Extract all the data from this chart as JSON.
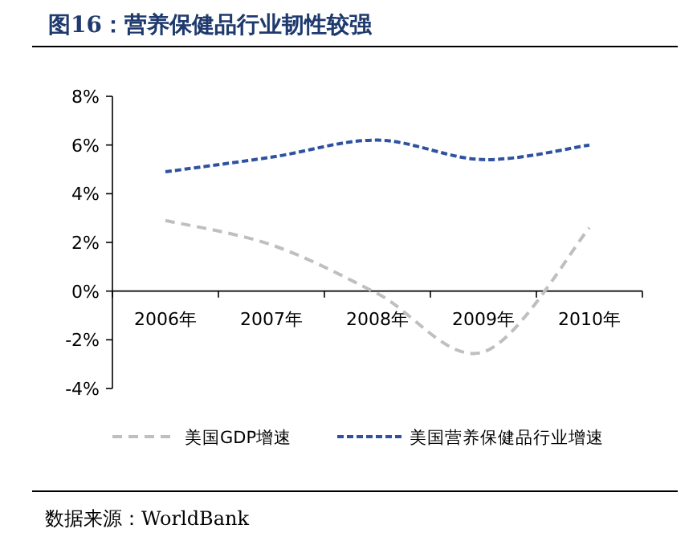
{
  "chart_data": {
    "type": "line",
    "title": "图16：营养保健品行业韧性较强",
    "categories": [
      "2006年",
      "2007年",
      "2008年",
      "2009年",
      "2010年"
    ],
    "series": [
      {
        "name": "美国GDP增速",
        "color": "#bfbfbf",
        "line_style": "dashed",
        "values": [
          2.9,
          1.9,
          -0.1,
          -2.5,
          2.6
        ]
      },
      {
        "name": "美国营养保健品行业增速",
        "color": "#2f52a0",
        "line_style": "dotted",
        "values": [
          4.9,
          5.5,
          6.2,
          5.4,
          6.0
        ]
      }
    ],
    "ylim": [
      -4,
      8
    ],
    "yticks": [
      {
        "value": -4,
        "label": "-4%"
      },
      {
        "value": -2,
        "label": "-2%"
      },
      {
        "value": 0,
        "label": "0%"
      },
      {
        "value": 2,
        "label": "2%"
      },
      {
        "value": 4,
        "label": "4%"
      },
      {
        "value": 6,
        "label": "6%"
      },
      {
        "value": 8,
        "label": "8%"
      }
    ],
    "legend": "bottom",
    "annotations": [
      "数据来源：WorldBank"
    ]
  }
}
